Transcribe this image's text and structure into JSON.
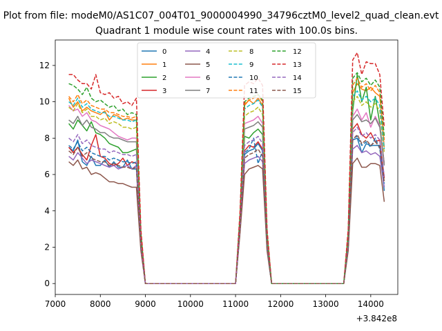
{
  "chart_data": {
    "type": "line",
    "suptitle": "Plot from file: modeM0/AS1C07_004T01_9000004990_34796cztM0_level2_quad_clean.evt",
    "title": "Quadrant 1 module wise count rates with 100.0s bins.",
    "xlabel": "",
    "ylabel": "",
    "x_offset_label": "+3.842e8",
    "xlim": [
      7000,
      14600
    ],
    "ylim": [
      -0.6,
      13.4
    ],
    "x_ticks": [
      7000,
      8000,
      9000,
      10000,
      11000,
      12000,
      13000,
      14000
    ],
    "y_ticks": [
      0,
      2,
      4,
      6,
      8,
      10,
      12
    ],
    "legend_position": "upper-center",
    "x": [
      7300,
      7400,
      7500,
      7600,
      7700,
      7800,
      7900,
      8000,
      8100,
      8200,
      8300,
      8400,
      8500,
      8600,
      8700,
      8800,
      8900,
      9000,
      10000,
      11000,
      11100,
      11200,
      11300,
      11400,
      11500,
      11600,
      11700,
      11800,
      12000,
      13000,
      13400,
      13500,
      13600,
      13700,
      13800,
      13900,
      14000,
      14100,
      14200,
      14300
    ],
    "series": [
      {
        "name": "0",
        "color": "#1f77b4",
        "dash": "solid",
        "values": [
          7.5,
          7.3,
          7.9,
          6.7,
          6.5,
          7.0,
          6.5,
          6.5,
          6.8,
          6.4,
          6.7,
          6.4,
          6.4,
          6.8,
          6.3,
          6.3,
          2.0,
          0,
          0,
          0,
          3.0,
          7.1,
          7.3,
          7.4,
          7.7,
          7.3,
          2.0,
          0,
          0,
          0,
          0,
          2.0,
          7.9,
          8.0,
          7.2,
          7.7,
          7.6,
          7.6,
          7.6,
          5.1
        ]
      },
      {
        "name": "1",
        "color": "#ff7f0e",
        "dash": "solid",
        "values": [
          10.2,
          9.7,
          10.0,
          9.5,
          9.7,
          9.5,
          9.4,
          9.3,
          9.5,
          9.0,
          9.3,
          9.2,
          9.0,
          9.1,
          9.0,
          9.0,
          2.5,
          0,
          0,
          0,
          3.5,
          9.8,
          10.1,
          9.9,
          10.2,
          9.8,
          2.5,
          0,
          0,
          0,
          0,
          2.3,
          10.5,
          11.0,
          10.7,
          10.6,
          10.8,
          10.5,
          10.3,
          7.5
        ]
      },
      {
        "name": "2",
        "color": "#2ca02c",
        "dash": "solid",
        "values": [
          8.8,
          8.5,
          9.0,
          8.7,
          8.4,
          8.9,
          8.3,
          8.2,
          8.0,
          7.7,
          7.6,
          7.5,
          7.2,
          7.2,
          7.3,
          7.4,
          2.2,
          0,
          0,
          0,
          3.2,
          8.1,
          8.0,
          8.3,
          8.5,
          8.2,
          2.2,
          0,
          0,
          0,
          0,
          2.2,
          9.5,
          11.5,
          10.0,
          10.8,
          9.0,
          10.3,
          8.8,
          6.6
        ]
      },
      {
        "name": "3",
        "color": "#d62728",
        "dash": "solid",
        "values": [
          7.5,
          7.2,
          7.5,
          7.1,
          6.8,
          7.6,
          8.2,
          7.0,
          6.9,
          6.6,
          6.5,
          6.6,
          6.9,
          6.5,
          6.7,
          6.6,
          2.0,
          0,
          0,
          0,
          3.1,
          7.3,
          7.6,
          7.5,
          7.8,
          7.4,
          2.1,
          0,
          0,
          0,
          0,
          2.1,
          8.5,
          8.8,
          8.2,
          8.0,
          8.3,
          7.8,
          7.9,
          5.8
        ]
      },
      {
        "name": "4",
        "color": "#9467bd",
        "dash": "solid",
        "values": [
          7.0,
          6.8,
          7.2,
          6.9,
          6.6,
          6.8,
          6.7,
          6.6,
          6.5,
          6.4,
          6.5,
          6.3,
          6.4,
          6.5,
          6.3,
          6.5,
          2.0,
          0,
          0,
          0,
          3.0,
          6.6,
          6.8,
          6.9,
          7.0,
          6.7,
          2.0,
          0,
          0,
          0,
          0,
          2.0,
          7.4,
          7.6,
          7.2,
          7.3,
          7.1,
          7.2,
          7.0,
          5.3
        ]
      },
      {
        "name": "5",
        "color": "#8c564b",
        "dash": "solid",
        "values": [
          6.7,
          6.5,
          6.8,
          6.3,
          6.4,
          6.0,
          6.1,
          6.0,
          5.8,
          5.6,
          5.6,
          5.5,
          5.5,
          5.4,
          5.3,
          5.3,
          1.8,
          0,
          0,
          0,
          2.8,
          6.0,
          6.3,
          6.4,
          6.5,
          6.3,
          1.8,
          0,
          0,
          0,
          0,
          1.8,
          6.6,
          6.9,
          6.4,
          6.4,
          6.6,
          6.6,
          6.5,
          4.5
        ]
      },
      {
        "name": "6",
        "color": "#e377c2",
        "dash": "solid",
        "values": [
          9.8,
          9.5,
          9.6,
          9.2,
          9.4,
          9.0,
          8.9,
          8.7,
          8.6,
          8.5,
          8.3,
          8.1,
          8.0,
          7.9,
          8.0,
          8.0,
          2.4,
          0,
          0,
          0,
          3.4,
          8.8,
          8.9,
          9.0,
          9.2,
          8.8,
          2.4,
          0,
          0,
          0,
          0,
          2.4,
          9.2,
          9.6,
          9.0,
          9.4,
          8.6,
          9.2,
          8.7,
          6.6
        ]
      },
      {
        "name": "7",
        "color": "#7f7f7f",
        "dash": "solid",
        "values": [
          9.0,
          8.8,
          9.2,
          8.7,
          9.0,
          8.6,
          8.5,
          8.3,
          8.3,
          8.1,
          8.0,
          8.0,
          7.9,
          7.8,
          7.8,
          7.8,
          2.3,
          0,
          0,
          0,
          3.3,
          8.5,
          8.6,
          8.7,
          8.9,
          8.6,
          2.3,
          0,
          0,
          0,
          0,
          2.3,
          9.0,
          9.3,
          8.9,
          9.0,
          8.8,
          9.1,
          8.6,
          6.5
        ]
      },
      {
        "name": "8",
        "color": "#bcbd22",
        "dash": "dashed",
        "values": [
          9.7,
          9.5,
          9.9,
          9.4,
          9.6,
          9.2,
          9.2,
          9.0,
          9.1,
          8.8,
          8.9,
          8.8,
          8.6,
          8.6,
          8.5,
          8.6,
          2.5,
          0,
          0,
          0,
          3.5,
          9.2,
          9.4,
          9.5,
          9.7,
          9.3,
          2.5,
          0,
          0,
          0,
          0,
          2.5,
          10.0,
          10.3,
          9.8,
          10.0,
          9.7,
          9.9,
          9.5,
          7.2
        ]
      },
      {
        "name": "9",
        "color": "#17becf",
        "dash": "dashed",
        "values": [
          10.0,
          9.8,
          10.2,
          9.7,
          9.9,
          9.6,
          9.5,
          9.4,
          9.4,
          9.2,
          9.2,
          9.1,
          9.0,
          9.0,
          8.9,
          9.0,
          2.6,
          0,
          0,
          0,
          3.6,
          9.6,
          9.8,
          9.9,
          10.1,
          9.7,
          2.6,
          0,
          0,
          0,
          0,
          2.6,
          10.3,
          10.6,
          10.1,
          10.3,
          10.0,
          10.2,
          9.8,
          7.4
        ]
      },
      {
        "name": "10",
        "color": "#1f77b4",
        "dash": "dashed",
        "values": [
          7.6,
          7.4,
          7.8,
          7.3,
          7.5,
          7.2,
          7.1,
          7.0,
          7.0,
          6.8,
          6.9,
          6.8,
          6.7,
          6.7,
          6.6,
          6.7,
          2.0,
          0,
          0,
          0,
          3.0,
          7.2,
          7.4,
          8.0,
          6.6,
          7.3,
          2.0,
          0,
          0,
          0,
          0,
          2.0,
          8.0,
          8.1,
          7.6,
          7.8,
          7.5,
          8.0,
          7.4,
          5.5
        ]
      },
      {
        "name": "11",
        "color": "#ff7f0e",
        "dash": "dashed",
        "values": [
          10.3,
          10.0,
          10.4,
          9.9,
          10.1,
          9.8,
          9.7,
          9.6,
          9.6,
          9.4,
          9.4,
          9.3,
          9.2,
          9.2,
          9.1,
          9.2,
          2.7,
          0,
          0,
          0,
          3.7,
          9.9,
          10.1,
          10.2,
          10.4,
          10.0,
          2.7,
          0,
          0,
          0,
          0,
          2.7,
          10.9,
          11.3,
          10.8,
          11.0,
          10.6,
          10.9,
          10.5,
          7.9
        ]
      },
      {
        "name": "12",
        "color": "#2ca02c",
        "dash": "dashed",
        "values": [
          11.0,
          10.9,
          10.7,
          10.4,
          10.8,
          10.2,
          10.0,
          10.1,
          9.9,
          9.7,
          9.8,
          9.5,
          9.6,
          9.3,
          9.4,
          9.3,
          2.8,
          0,
          0,
          0,
          3.8,
          10.0,
          10.2,
          10.3,
          10.4,
          10.1,
          2.8,
          0,
          0,
          0,
          0,
          2.8,
          11.3,
          11.6,
          11.1,
          11.3,
          10.9,
          11.2,
          10.8,
          8.1
        ]
      },
      {
        "name": "13",
        "color": "#d62728",
        "dash": "dashed",
        "values": [
          11.5,
          11.5,
          11.2,
          11.0,
          11.0,
          10.7,
          11.5,
          10.5,
          10.4,
          10.5,
          10.2,
          10.3,
          9.9,
          10.0,
          9.8,
          10.2,
          3.0,
          0,
          0,
          0,
          4.0,
          10.9,
          11.1,
          11.0,
          11.3,
          10.9,
          3.0,
          0,
          0,
          0,
          0,
          3.0,
          12.3,
          12.7,
          11.5,
          12.2,
          12.1,
          12.1,
          11.5,
          8.6
        ]
      },
      {
        "name": "14",
        "color": "#9467bd",
        "dash": "dashed",
        "values": [
          8.0,
          7.8,
          8.2,
          7.7,
          7.9,
          7.6,
          7.5,
          7.4,
          7.4,
          7.2,
          7.3,
          7.2,
          7.1,
          7.1,
          7.0,
          7.1,
          2.1,
          0,
          0,
          0,
          3.1,
          7.6,
          7.8,
          7.9,
          8.1,
          7.7,
          2.1,
          0,
          0,
          0,
          0,
          2.1,
          8.3,
          8.6,
          8.1,
          8.3,
          8.0,
          8.2,
          7.9,
          5.9
        ]
      },
      {
        "name": "15",
        "color": "#8c564b",
        "dash": "dashed",
        "values": [
          7.3,
          7.1,
          7.5,
          7.0,
          7.2,
          6.9,
          6.8,
          6.7,
          6.7,
          6.5,
          6.6,
          6.5,
          6.4,
          6.4,
          6.3,
          6.4,
          1.9,
          0,
          0,
          0,
          2.9,
          6.9,
          7.1,
          7.2,
          7.4,
          7.0,
          1.9,
          0,
          0,
          0,
          0,
          1.9,
          7.9,
          8.2,
          7.7,
          7.9,
          7.6,
          7.8,
          7.5,
          5.6
        ]
      }
    ]
  }
}
